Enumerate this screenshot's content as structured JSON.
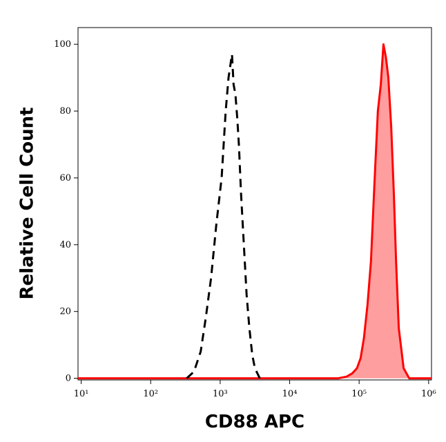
{
  "chart_data": {
    "type": "line",
    "x_label": "CD88 APC",
    "y_label": "Relative Cell Count",
    "xscale": "log",
    "xlim": [
      9,
      1100000
    ],
    "ylim": [
      -0.5,
      105
    ],
    "xticks": [
      {
        "value": 10,
        "label": "10¹"
      },
      {
        "value": 100,
        "label": "10²"
      },
      {
        "value": 1000,
        "label": "10³"
      },
      {
        "value": 10000,
        "label": "10⁴"
      },
      {
        "value": 100000,
        "label": "10⁵"
      },
      {
        "value": 1000000,
        "label": "10⁶"
      }
    ],
    "yticks": [
      0,
      20,
      40,
      60,
      80,
      100
    ],
    "series": [
      {
        "color": "#000000",
        "dash": true,
        "fill": false,
        "x": [
          330,
          420,
          525,
          620,
          740,
          880,
          1050,
          1200,
          1320,
          1480,
          1560,
          1660,
          1760,
          1860,
          2000,
          2190,
          2400,
          2630,
          2900,
          3160,
          3720
        ],
        "values": [
          0,
          2,
          8,
          18,
          30,
          46,
          60,
          80,
          90,
          97,
          88,
          85,
          78,
          70,
          55,
          40,
          25,
          15,
          7,
          3,
          0
        ]
      },
      {
        "color": "#ff0000",
        "dash": false,
        "fill": true,
        "x": [
          9,
          1000,
          10000,
          50000,
          66000,
          80000,
          93000,
          105000,
          117000,
          132000,
          148000,
          166000,
          186000,
          205000,
          224000,
          243000,
          263000,
          290000,
          316000,
          340000,
          372000,
          437000,
          525000,
          1100000
        ],
        "values": [
          0,
          0,
          0,
          0,
          0.5,
          1.5,
          3,
          6,
          12,
          22,
          35,
          58,
          80,
          88,
          100,
          96,
          90,
          75,
          55,
          35,
          15,
          3,
          0,
          0
        ]
      }
    ]
  }
}
